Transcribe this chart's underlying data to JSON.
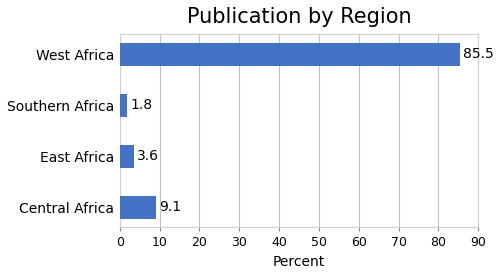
{
  "title": "Publication by Region",
  "categories": [
    "West Africa",
    "Southern Africa",
    "East Africa",
    "Central Africa"
  ],
  "values": [
    85.5,
    1.8,
    3.6,
    9.1
  ],
  "bar_color": "#4472C4",
  "xlabel": "Percent",
  "xlim": [
    0,
    90
  ],
  "xticks": [
    0,
    10,
    20,
    30,
    40,
    50,
    60,
    70,
    80,
    90
  ],
  "bar_height": 0.45,
  "title_fontsize": 15,
  "label_fontsize": 10,
  "tick_fontsize": 9,
  "value_fontsize": 10
}
